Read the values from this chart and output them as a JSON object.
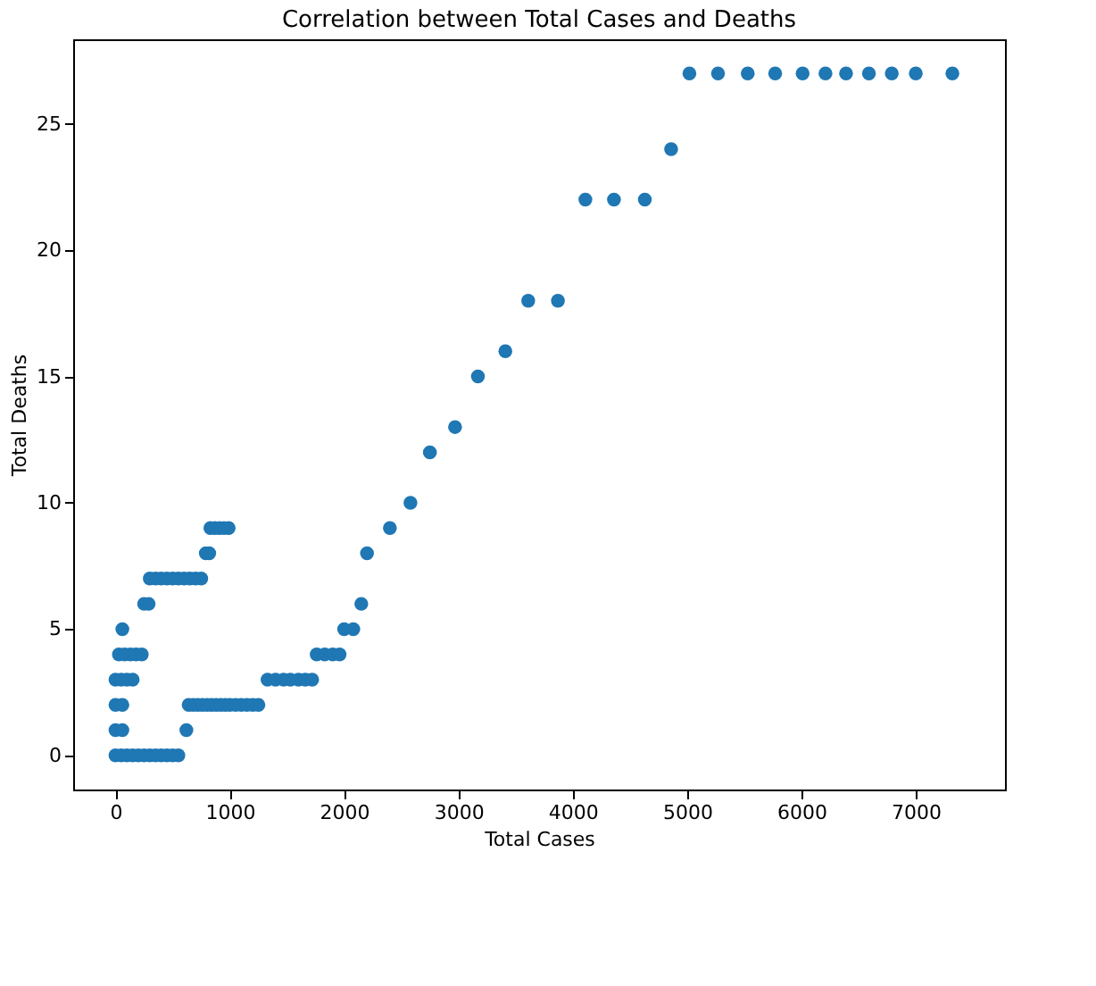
{
  "chart_data": {
    "type": "scatter",
    "title": "Correlation between Total Cases and Deaths",
    "xlabel": "Total Cases",
    "ylabel": "Total Deaths",
    "marker": "circle",
    "grid": false,
    "legend": false,
    "xlim": [
      -370,
      7780
    ],
    "ylim": [
      -1.35,
      28.35
    ],
    "xticks": [
      0,
      1000,
      2000,
      3000,
      4000,
      5000,
      6000,
      7000
    ],
    "yticks": [
      0,
      5,
      10,
      15,
      20,
      25
    ],
    "series": [
      {
        "color": "#1f77b4",
        "x": [
          0,
          50,
          100,
          150,
          200,
          250,
          300,
          350,
          400,
          450,
          500,
          550,
          0,
          60,
          620,
          0,
          60,
          640,
          680,
          720,
          760,
          800,
          840,
          880,
          920,
          960,
          1000,
          1050,
          1100,
          1150,
          1200,
          1250,
          0,
          50,
          100,
          150,
          1330,
          1400,
          1470,
          1530,
          1600,
          1660,
          1720,
          30,
          80,
          130,
          180,
          230,
          1760,
          1830,
          1900,
          1960,
          60,
          2000,
          2080,
          250,
          290,
          2150,
          300,
          350,
          400,
          450,
          500,
          550,
          600,
          650,
          700,
          750,
          2200,
          790,
          820,
          2400,
          830,
          870,
          910,
          950,
          990,
          2580,
          2750,
          2970,
          3170,
          3410,
          3610,
          3870,
          4110,
          4360,
          4630,
          4860,
          5020,
          5270,
          5530,
          5770,
          6010,
          6210,
          6390,
          6590,
          6790,
          7000,
          7320
        ],
        "values": [
          0,
          0,
          0,
          0,
          0,
          0,
          0,
          0,
          0,
          0,
          0,
          0,
          1,
          1,
          1,
          2,
          2,
          2,
          2,
          2,
          2,
          2,
          2,
          2,
          2,
          2,
          2,
          2,
          2,
          2,
          2,
          2,
          3,
          3,
          3,
          3,
          3,
          3,
          3,
          3,
          3,
          3,
          3,
          4,
          4,
          4,
          4,
          4,
          4,
          4,
          4,
          4,
          5,
          5,
          5,
          6,
          6,
          6,
          7,
          7,
          7,
          7,
          7,
          7,
          7,
          7,
          7,
          7,
          8,
          8,
          8,
          9,
          9,
          9,
          9,
          9,
          9,
          10,
          12,
          13,
          15,
          16,
          18,
          18,
          22,
          22,
          22,
          24,
          27,
          27,
          27,
          27,
          27,
          27,
          27,
          27,
          27,
          27,
          27
        ]
      }
    ]
  }
}
